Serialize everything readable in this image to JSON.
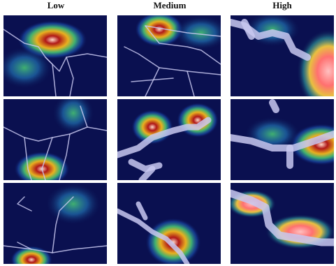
{
  "columns": [
    "Low",
    "Medium",
    "High"
  ]
}
